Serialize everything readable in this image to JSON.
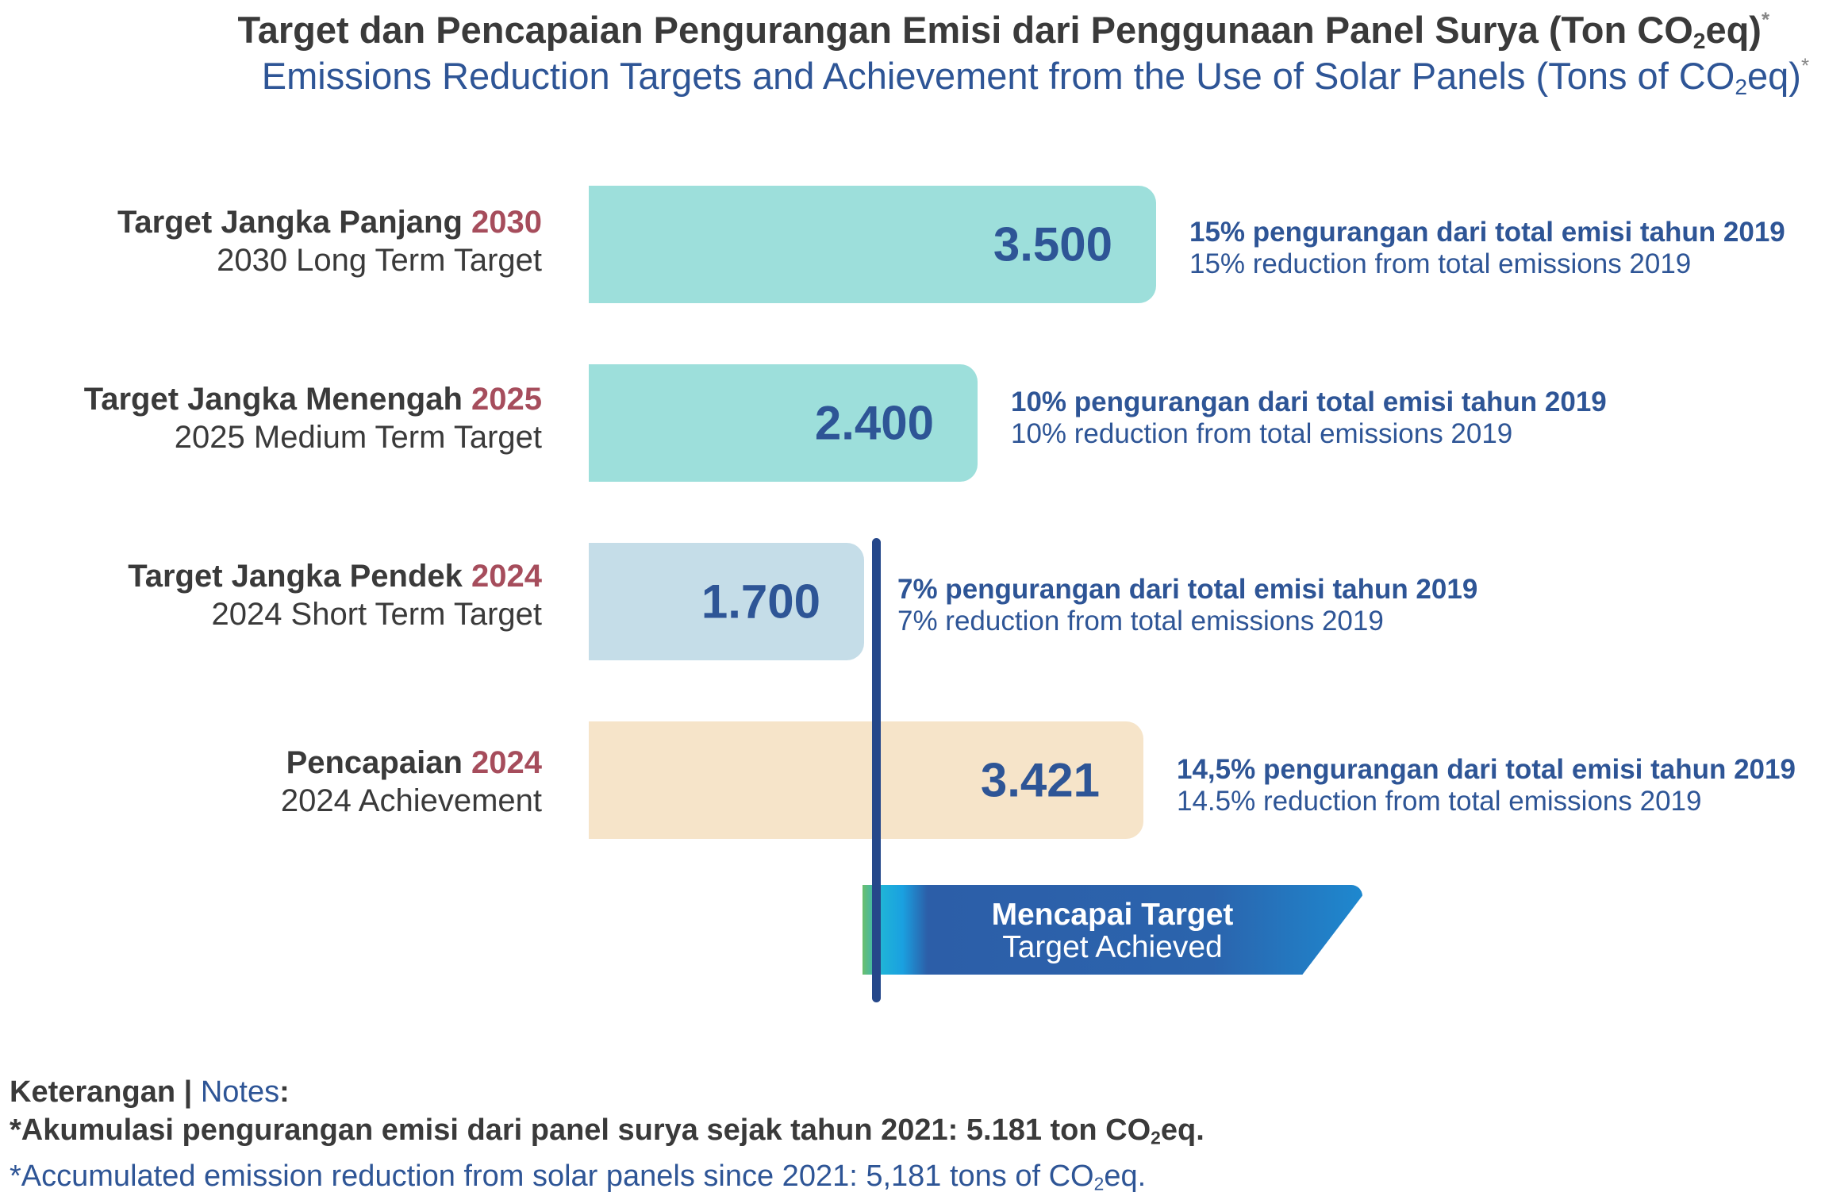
{
  "header": {
    "title_id_pre": "Target dan Pencapaian Pengurangan Emisi dari Penggunaan Panel Surya (Ton CO",
    "title_id_sub": "2",
    "title_id_post": "eq)",
    "title_en_pre": "Emissions Reduction Targets and Achievement from the Use of Solar Panels (Tons of CO",
    "title_en_sub": "2",
    "title_en_post": "eq)",
    "asterisk": "*"
  },
  "chart_data": {
    "type": "bar",
    "orientation": "horizontal",
    "title": "Target dan Pencapaian Pengurangan Emisi dari Penggunaan Panel Surya (Ton CO2eq)*",
    "subtitle": "Emissions Reduction Targets and Achievement from the Use of Solar Panels (Tons of CO2eq)*",
    "categories": [
      {
        "label_id": "Target Jangka Panjang",
        "year": "2030",
        "label_en": "2030 Long Term Target"
      },
      {
        "label_id": "Target Jangka Menengah",
        "year": "2025",
        "label_en": "2025 Medium Term Target"
      },
      {
        "label_id": "Target Jangka Pendek",
        "year": "2024",
        "label_en": "2024 Short Term Target"
      },
      {
        "label_id": "Pencapaian",
        "year": "2024",
        "label_en": "2024 Achievement"
      }
    ],
    "values": [
      3500,
      2400,
      1700,
      3421
    ],
    "value_labels": [
      "3.500",
      "2.400",
      "1.700",
      "3.421"
    ],
    "colors": [
      "#9ddfdb",
      "#9ddfdb",
      "#c5dde8",
      "#f6e4c9"
    ],
    "annotations": [
      {
        "id": "15% pengurangan dari total emisi tahun 2019",
        "en": "15% reduction from total emissions 2019"
      },
      {
        "id": "10% pengurangan dari total emisi tahun 2019",
        "en": "10% reduction from total emissions 2019"
      },
      {
        "id": "7% pengurangan dari total emisi tahun 2019",
        "en": "7% reduction from total emissions 2019"
      },
      {
        "id": "14,5% pengurangan dari total emisi tahun 2019",
        "en": "14.5% reduction from total emissions 2019"
      }
    ],
    "reference_line": {
      "value": 1700,
      "label_id": "Mencapai Target",
      "label_en": "Target Achieved"
    },
    "xlim": [
      0,
      3500
    ]
  },
  "flag": {
    "label_id": "Mencapai Target",
    "label_en": "Target Achieved"
  },
  "notes": {
    "heading_id": "Keterangan",
    "pipe": "|",
    "heading_en": "Notes",
    "colon": ":",
    "asterisk": "*",
    "line_id_pre": "Akumulasi pengurangan emisi dari panel surya sejak tahun 2021: 5.181 ton CO",
    "line_id_sub": "2",
    "line_id_post": "eq.",
    "line_en_pre": "Accumulated emission reduction from solar panels since 2021: 5,181 tons of CO",
    "line_en_sub": "2",
    "line_en_post": "eq."
  },
  "colors": {
    "accent_blue": "#2e5596",
    "year_red": "#a64d5c",
    "text_dark": "#3a3a3a"
  }
}
